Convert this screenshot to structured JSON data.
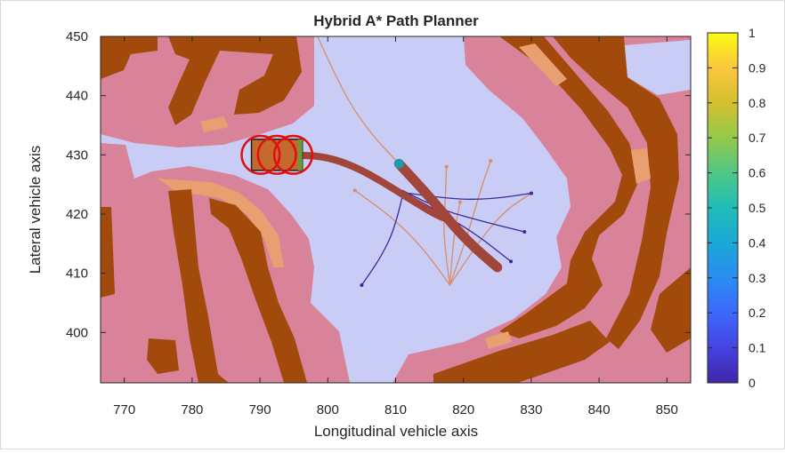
{
  "chart_data": {
    "type": "heatmap",
    "title": "Hybrid A* Path Planner",
    "xlabel": "Longitudinal vehicle axis",
    "ylabel": "Lateral vehicle axis",
    "xlim": [
      766.5,
      853.5
    ],
    "ylim": [
      391.5,
      450
    ],
    "xticks": [
      770,
      780,
      790,
      800,
      810,
      820,
      830,
      840,
      850
    ],
    "yticks": [
      400,
      410,
      420,
      430,
      440,
      450
    ],
    "grid": false,
    "colorbar": {
      "colormap": "parula",
      "range": [
        0,
        1
      ],
      "ticks": [
        0,
        0.1,
        0.2,
        0.3,
        0.4,
        0.5,
        0.6,
        0.7,
        0.8,
        0.9,
        1
      ],
      "tick_labels": [
        "0",
        "0.1",
        "0.2",
        "0.3",
        "0.4",
        "0.5",
        "0.6",
        "0.7",
        "0.8",
        "0.9",
        "1"
      ],
      "stops": [
        "#3e26a8",
        "#4743e0",
        "#3c68fc",
        "#2a8cf0",
        "#1ba8d8",
        "#1fbdb6",
        "#50c786",
        "#94c94a",
        "#d4c030",
        "#fbc73c",
        "#f9fb15"
      ]
    },
    "costmap_colors": {
      "free": "#c9cdf5",
      "inflated": "#d9839a",
      "near_obstacle": "#e8a070",
      "obstacle": "#a24a0c"
    },
    "vehicle_start": {
      "x": 792.5,
      "y": 430,
      "heading_deg": 0
    },
    "goal": {
      "x": 810.5,
      "y": 428.5
    },
    "planned_path": [
      {
        "x": 792,
        "y": 430
      },
      {
        "x": 796,
        "y": 430
      },
      {
        "x": 800,
        "y": 429.6
      },
      {
        "x": 804,
        "y": 428
      },
      {
        "x": 808,
        "y": 425.5
      },
      {
        "x": 812,
        "y": 422.6
      },
      {
        "x": 816,
        "y": 419.8
      },
      {
        "x": 818,
        "y": 419
      }
    ],
    "goal_segment": [
      {
        "x": 810.5,
        "y": 428.5
      },
      {
        "x": 815,
        "y": 423
      },
      {
        "x": 820,
        "y": 416
      },
      {
        "x": 825,
        "y": 411
      }
    ],
    "explored_tree": [
      {
        "color": "#d98d6a",
        "points": [
          {
            "x": 798.5,
            "y": 450
          },
          {
            "x": 802,
            "y": 441
          },
          {
            "x": 806,
            "y": 434
          },
          {
            "x": 810.5,
            "y": 428.5
          }
        ]
      },
      {
        "color": "#d98d6a",
        "points": [
          {
            "x": 818,
            "y": 408
          },
          {
            "x": 820.5,
            "y": 416
          },
          {
            "x": 822.5,
            "y": 424
          },
          {
            "x": 824,
            "y": 429
          }
        ]
      },
      {
        "color": "#d98d6a",
        "points": [
          {
            "x": 818,
            "y": 408
          },
          {
            "x": 822,
            "y": 415
          },
          {
            "x": 826,
            "y": 420.5
          },
          {
            "x": 830,
            "y": 423.5
          }
        ]
      },
      {
        "color": "#d98d6a",
        "points": [
          {
            "x": 818,
            "y": 408
          },
          {
            "x": 817,
            "y": 416
          },
          {
            "x": 817.3,
            "y": 422
          },
          {
            "x": 817.5,
            "y": 428
          }
        ]
      },
      {
        "color": "#d98d6a",
        "points": [
          {
            "x": 818,
            "y": 408
          },
          {
            "x": 815,
            "y": 413
          },
          {
            "x": 810,
            "y": 419
          },
          {
            "x": 804,
            "y": 424
          }
        ]
      },
      {
        "color": "#d98d6a",
        "points": [
          {
            "x": 818,
            "y": 408
          },
          {
            "x": 818.5,
            "y": 416
          },
          {
            "x": 819.5,
            "y": 422
          }
        ]
      },
      {
        "color": "#3a2a9a",
        "points": [
          {
            "x": 811,
            "y": 424
          },
          {
            "x": 816,
            "y": 421
          },
          {
            "x": 822,
            "y": 419
          },
          {
            "x": 829,
            "y": 417
          }
        ]
      },
      {
        "color": "#3a2a9a",
        "points": [
          {
            "x": 812,
            "y": 423.5
          },
          {
            "x": 818,
            "y": 422.5
          },
          {
            "x": 824,
            "y": 422.5
          },
          {
            "x": 830,
            "y": 423.5
          }
        ]
      },
      {
        "color": "#3a2a9a",
        "points": [
          {
            "x": 811,
            "y": 423
          },
          {
            "x": 810,
            "y": 418
          },
          {
            "x": 808,
            "y": 413
          },
          {
            "x": 805,
            "y": 408
          }
        ]
      },
      {
        "color": "#3a2a9a",
        "points": [
          {
            "x": 811.5,
            "y": 423.5
          },
          {
            "x": 817,
            "y": 420
          },
          {
            "x": 822,
            "y": 416.5
          },
          {
            "x": 827,
            "y": 412
          }
        ]
      }
    ]
  }
}
